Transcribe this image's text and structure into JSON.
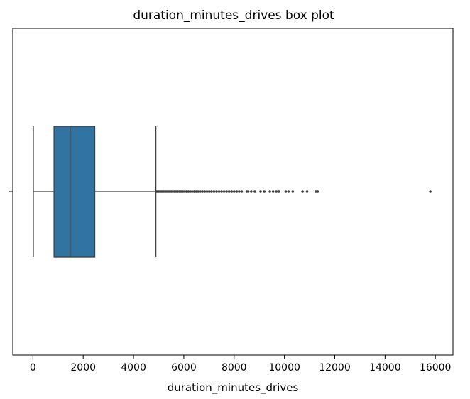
{
  "chart_data": {
    "type": "box",
    "orientation": "horizontal",
    "title": "duration_minutes_drives box plot",
    "xlabel": "duration_minutes_drives",
    "ylabel": "",
    "xlim": [
      -800,
      16700
    ],
    "xticks": [
      0,
      2000,
      4000,
      6000,
      8000,
      10000,
      12000,
      14000,
      16000
    ],
    "xtick_labels": [
      "0",
      "2000",
      "4000",
      "6000",
      "8000",
      "10000",
      "12000",
      "14000",
      "16000"
    ],
    "grid": false,
    "box": {
      "whisker_low": 18,
      "q1": 840,
      "median": 1480,
      "q3": 2460,
      "whisker_high": 4890
    },
    "outliers": [
      4920,
      4960,
      5000,
      5050,
      5100,
      5150,
      5200,
      5260,
      5320,
      5380,
      5440,
      5500,
      5560,
      5620,
      5690,
      5760,
      5830,
      5900,
      5970,
      6040,
      6110,
      6180,
      6250,
      6330,
      6410,
      6490,
      6570,
      6650,
      6740,
      6830,
      6920,
      7010,
      7100,
      7200,
      7300,
      7400,
      7500,
      7600,
      7700,
      7800,
      7900,
      8000,
      8100,
      8200,
      8300,
      8500,
      8560,
      8680,
      8820,
      9050,
      9200,
      9420,
      9550,
      9680,
      9780,
      10050,
      10160,
      10330,
      10720,
      10900,
      11250,
      11320,
      15800
    ],
    "colors": {
      "box_fill": "#3274a1",
      "lines": "#3f3f3f",
      "axes": "#000000"
    }
  }
}
